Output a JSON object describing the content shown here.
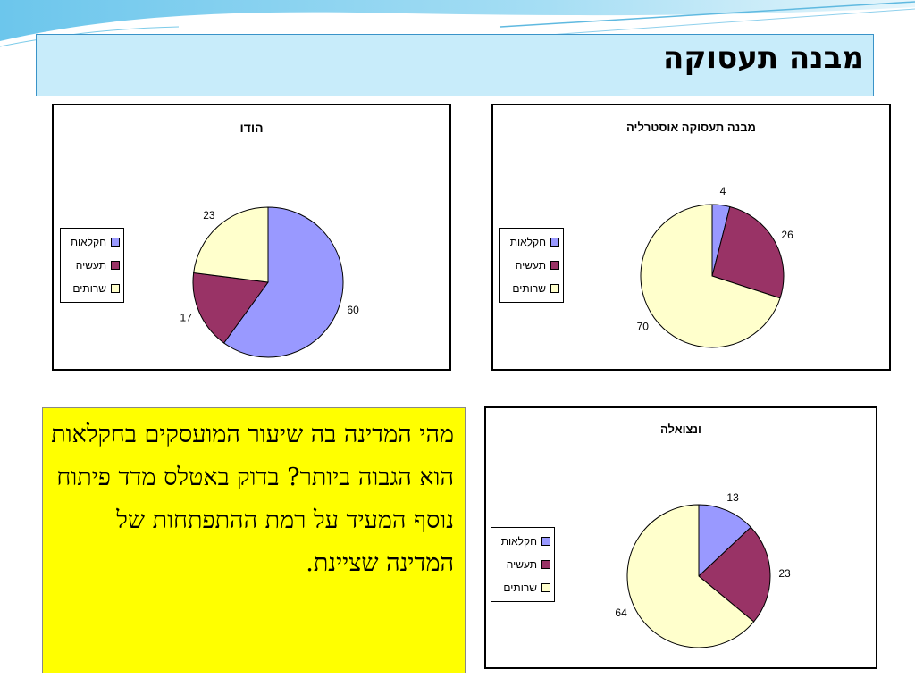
{
  "title": "מבנה תעסוקה",
  "question": "מהי המדינה בה שיעור המועסקים בחקלאות הוא הגבוה ביותר? בדוק באטלס מדד פיתוח נוסף המעיד על רמת ההתפתחות של המדינה שציינת.",
  "colors": {
    "agriculture": "#9999ff",
    "industry": "#993366",
    "services": "#ffffcc"
  },
  "chart_data": [
    {
      "type": "pie",
      "title": "הודו",
      "categories": [
        "חקלאות",
        "תעשיה",
        "שרותים"
      ],
      "values": [
        60,
        17,
        23
      ],
      "legend_position": "left"
    },
    {
      "type": "pie",
      "title": "מבנה תעסוקה אוסטרליה",
      "categories": [
        "חקלאות",
        "תעשיה",
        "שרותים"
      ],
      "values": [
        4,
        26,
        70
      ],
      "legend_position": "left"
    },
    {
      "type": "pie",
      "title": "ונצואלה",
      "categories": [
        "חקלאות",
        "תעשיה",
        "שרותים"
      ],
      "values": [
        13,
        23,
        64
      ],
      "legend_position": "left"
    }
  ]
}
